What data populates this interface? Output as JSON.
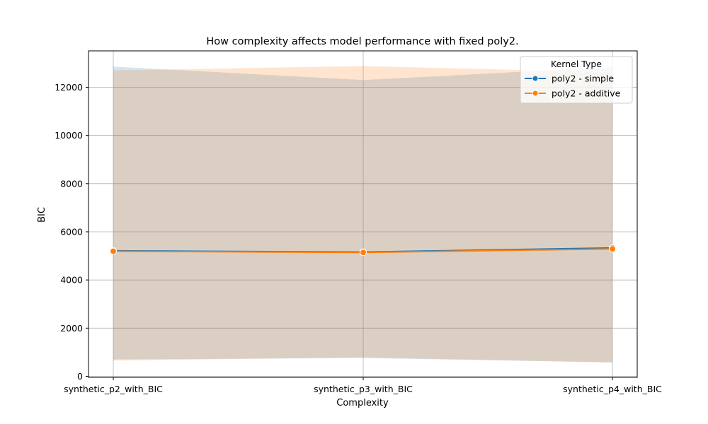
{
  "chart_data": {
    "type": "line",
    "title": "How complexity affects model performance with fixed poly2.",
    "xlabel": "Complexity",
    "ylabel": "BIC",
    "categories": [
      "synthetic_p2_with_BIC",
      "synthetic_p3_with_BIC",
      "synthetic_p4_with_BIC"
    ],
    "ylim": [
      0,
      13500
    ],
    "yticks": [
      0,
      2000,
      4000,
      6000,
      8000,
      10000,
      12000
    ],
    "grid": true,
    "legend": {
      "title": "Kernel Type",
      "placement": "top-right"
    },
    "series": [
      {
        "name": "poly2 - simple",
        "color": "#1f77b4",
        "values": [
          5210,
          5160,
          5330
        ],
        "band_lower": [
          700,
          760,
          580
        ],
        "band_upper": [
          12860,
          12300,
          12840
        ]
      },
      {
        "name": "poly2 - additive",
        "color": "#ff7f0e",
        "values": [
          5190,
          5140,
          5290
        ],
        "band_lower": [
          650,
          790,
          570
        ],
        "band_upper": [
          12700,
          12880,
          12620
        ]
      }
    ]
  }
}
